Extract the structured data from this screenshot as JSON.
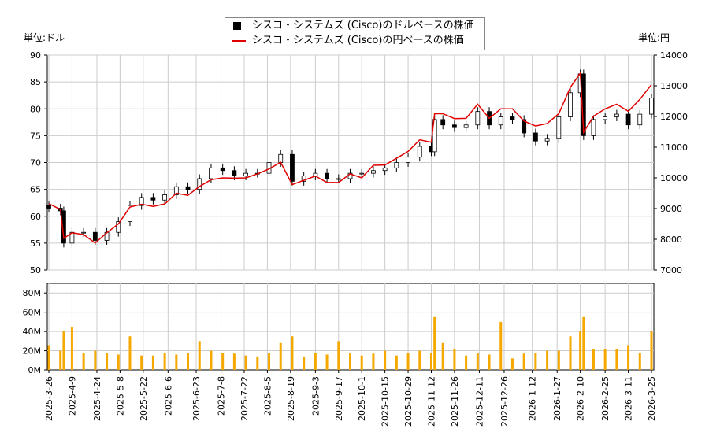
{
  "units": {
    "left": "単位:ドル",
    "right": "単位:円"
  },
  "legend": {
    "usd": "シスコ・システムズ (Cisco)のドルベースの株価",
    "jpy": "シスコ・システムズ (Cisco)の円ベースの株価"
  },
  "colors": {
    "usd_candle": "#000000",
    "jpy_line": "#e00000",
    "volume": "#f5a800"
  },
  "chart_data": {
    "type": "candlestick+line+bar",
    "ylim_usd": [
      50,
      90
    ],
    "yticks_usd": [
      50,
      55,
      60,
      65,
      70,
      75,
      80,
      85,
      90
    ],
    "ylim_jpy": [
      7000,
      14000
    ],
    "yticks_jpy": [
      7000,
      8000,
      9000,
      10000,
      11000,
      12000,
      13000,
      14000
    ],
    "ylim_volume": [
      0,
      90
    ],
    "yticks_volume": [
      "0M",
      "20M",
      "40M",
      "60M",
      "80M"
    ],
    "grid": true,
    "xticks": [
      "2025-3-26",
      "2025-4-9",
      "2025-4-24",
      "2025-5-8",
      "2025-5-22",
      "2025-6-6",
      "2025-6-23",
      "2025-7-8",
      "2025-7-22",
      "2025-8-5",
      "2025-8-19",
      "2025-9-3",
      "2025-9-17",
      "2025-10-1",
      "2025-10-15",
      "2025-10-29",
      "2025-11-12",
      "2025-11-26",
      "2025-12-11",
      "2025-12-26",
      "2026-1-12",
      "2026-1-27",
      "2026-2-10",
      "2026-2-25",
      "2026-3-11",
      "2026-3-25"
    ],
    "dates": [
      "2025-03-26",
      "2025-04-02",
      "2025-04-04",
      "2025-04-09",
      "2025-04-16",
      "2025-04-23",
      "2025-04-30",
      "2025-05-07",
      "2025-05-14",
      "2025-05-21",
      "2025-05-28",
      "2025-06-04",
      "2025-06-11",
      "2025-06-18",
      "2025-06-25",
      "2025-07-02",
      "2025-07-09",
      "2025-07-16",
      "2025-07-23",
      "2025-07-30",
      "2025-08-06",
      "2025-08-13",
      "2025-08-20",
      "2025-08-27",
      "2025-09-03",
      "2025-09-10",
      "2025-09-17",
      "2025-09-24",
      "2025-10-01",
      "2025-10-08",
      "2025-10-15",
      "2025-10-22",
      "2025-10-29",
      "2025-11-05",
      "2025-11-12",
      "2025-11-14",
      "2025-11-19",
      "2025-11-26",
      "2025-12-03",
      "2025-12-10",
      "2025-12-17",
      "2025-12-24",
      "2025-12-31",
      "2026-01-07",
      "2026-01-14",
      "2026-01-21",
      "2026-01-28",
      "2026-02-04",
      "2026-02-10",
      "2026-02-12",
      "2026-02-18",
      "2026-02-25",
      "2026-03-04",
      "2026-03-11",
      "2026-03-18",
      "2026-03-25"
    ],
    "close_usd": [
      61.5,
      61,
      55,
      57,
      57,
      55.5,
      57,
      59,
      62,
      63.5,
      63,
      64,
      65.5,
      65,
      67,
      69,
      68.5,
      67.5,
      68,
      68,
      70,
      71.5,
      66.5,
      67.5,
      68,
      67,
      67,
      68,
      68,
      68.5,
      69,
      70,
      71,
      73,
      72,
      78,
      77,
      76.5,
      77,
      79.5,
      77,
      78.5,
      78,
      75.5,
      74,
      74.5,
      78.5,
      83,
      86.5,
      75,
      78,
      78.5,
      79,
      77,
      79,
      82
    ],
    "close_jpy": [
      9160,
      8970,
      8030,
      8210,
      8150,
      7880,
      8210,
      8500,
      9050,
      9140,
      9070,
      9150,
      9500,
      9430,
      9720,
      9940,
      10000,
      9990,
      10000,
      10130,
      10290,
      10510,
      9780,
      9920,
      10060,
      9850,
      9850,
      10130,
      10000,
      10410,
      10420,
      10640,
      10860,
      11240,
      11160,
      12090,
      12090,
      11930,
      11940,
      12400,
      11940,
      12250,
      12250,
      11850,
      11690,
      11770,
      12090,
      12950,
      13410,
      11480,
      12010,
      12250,
      12400,
      12170,
      12560,
      13040
    ],
    "volume_m": [
      25,
      20,
      40,
      45,
      18,
      20,
      18,
      16,
      35,
      15,
      15,
      18,
      16,
      18,
      30,
      20,
      18,
      17,
      15,
      14,
      18,
      28,
      35,
      14,
      18,
      16,
      30,
      18,
      15,
      17,
      20,
      15,
      18,
      20,
      18,
      55,
      28,
      22,
      15,
      18,
      16,
      50,
      12,
      17,
      18,
      20,
      20,
      35,
      40,
      55,
      22,
      22,
      22,
      25,
      18,
      40
    ]
  }
}
